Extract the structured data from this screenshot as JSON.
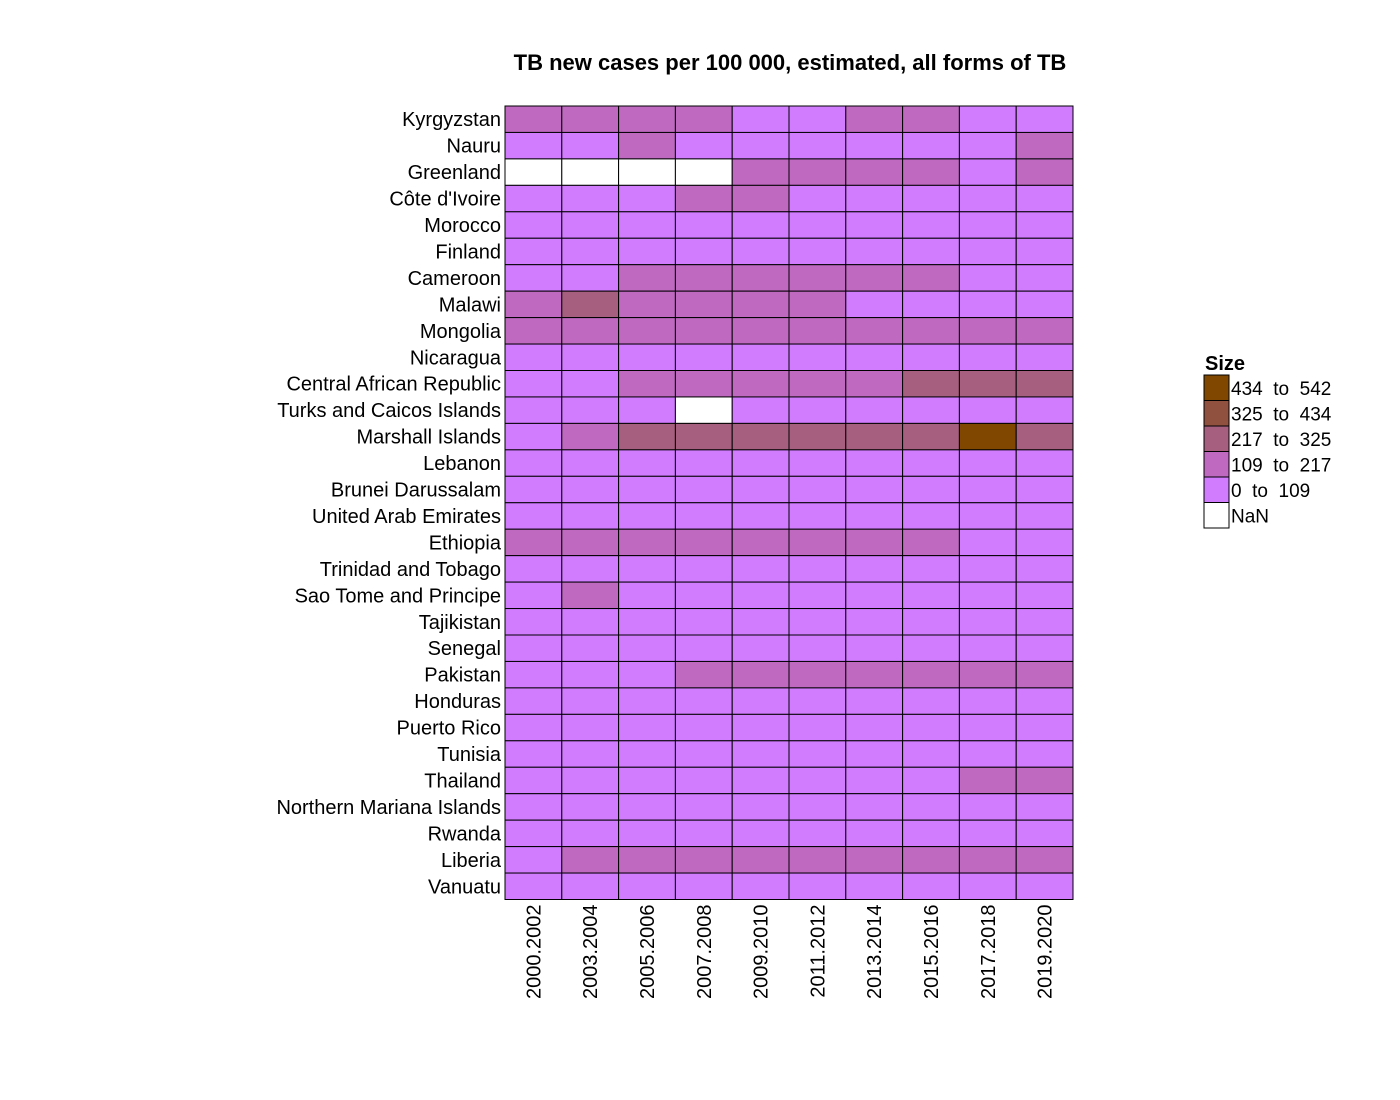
{
  "chart_data": {
    "type": "heatmap",
    "title": "TB new cases per 100 000, estimated, all forms of TB",
    "columns": [
      "2000.2002",
      "2003.2004",
      "2005.2006",
      "2007.2008",
      "2009.2010",
      "2011.2012",
      "2013.2014",
      "2015.2016",
      "2017.2018",
      "2019.2020"
    ],
    "rows": [
      "Kyrgyzstan",
      "Nauru",
      "Greenland",
      "Côte d'Ivoire",
      "Morocco",
      "Finland",
      "Cameroon",
      "Malawi",
      "Mongolia",
      "Nicaragua",
      "Central African Republic",
      "Turks and Caicos Islands",
      "Marshall Islands",
      "Lebanon",
      "Brunei Darussalam",
      "United Arab Emirates",
      "Ethiopia",
      "Trinidad and Tobago",
      "Sao Tome and Principe",
      "Tajikistan",
      "Senegal",
      "Pakistan",
      "Honduras",
      "Puerto Rico",
      "Tunisia",
      "Thailand",
      "Northern Mariana Islands",
      "Rwanda",
      "Liberia",
      "Vanuatu"
    ],
    "bin_index_matrix": [
      [
        1,
        1,
        1,
        1,
        0,
        0,
        1,
        1,
        0,
        0
      ],
      [
        0,
        0,
        1,
        0,
        0,
        0,
        0,
        0,
        0,
        1
      ],
      [
        -1,
        -1,
        -1,
        -1,
        1,
        1,
        1,
        1,
        0,
        1
      ],
      [
        0,
        0,
        0,
        1,
        1,
        0,
        0,
        0,
        0,
        0
      ],
      [
        0,
        0,
        0,
        0,
        0,
        0,
        0,
        0,
        0,
        0
      ],
      [
        0,
        0,
        0,
        0,
        0,
        0,
        0,
        0,
        0,
        0
      ],
      [
        0,
        0,
        1,
        1,
        1,
        1,
        1,
        1,
        0,
        0
      ],
      [
        1,
        2,
        1,
        1,
        1,
        1,
        0,
        0,
        0,
        0
      ],
      [
        1,
        1,
        1,
        1,
        1,
        1,
        1,
        1,
        1,
        1
      ],
      [
        0,
        0,
        0,
        0,
        0,
        0,
        0,
        0,
        0,
        0
      ],
      [
        0,
        0,
        1,
        1,
        1,
        1,
        1,
        2,
        2,
        2
      ],
      [
        0,
        0,
        0,
        -1,
        0,
        0,
        0,
        0,
        0,
        0
      ],
      [
        0,
        1,
        2,
        2,
        2,
        2,
        2,
        2,
        4,
        2
      ],
      [
        0,
        0,
        0,
        0,
        0,
        0,
        0,
        0,
        0,
        0
      ],
      [
        0,
        0,
        0,
        0,
        0,
        0,
        0,
        0,
        0,
        0
      ],
      [
        0,
        0,
        0,
        0,
        0,
        0,
        0,
        0,
        0,
        0
      ],
      [
        1,
        1,
        1,
        1,
        1,
        1,
        1,
        1,
        0,
        0
      ],
      [
        0,
        0,
        0,
        0,
        0,
        0,
        0,
        0,
        0,
        0
      ],
      [
        0,
        1,
        0,
        0,
        0,
        0,
        0,
        0,
        0,
        0
      ],
      [
        0,
        0,
        0,
        0,
        0,
        0,
        0,
        0,
        0,
        0
      ],
      [
        0,
        0,
        0,
        0,
        0,
        0,
        0,
        0,
        0,
        0
      ],
      [
        0,
        0,
        0,
        1,
        1,
        1,
        1,
        1,
        1,
        1
      ],
      [
        0,
        0,
        0,
        0,
        0,
        0,
        0,
        0,
        0,
        0
      ],
      [
        0,
        0,
        0,
        0,
        0,
        0,
        0,
        0,
        0,
        0
      ],
      [
        0,
        0,
        0,
        0,
        0,
        0,
        0,
        0,
        0,
        0
      ],
      [
        0,
        0,
        0,
        0,
        0,
        0,
        0,
        0,
        1,
        1
      ],
      [
        0,
        0,
        0,
        0,
        0,
        0,
        0,
        0,
        0,
        0
      ],
      [
        0,
        0,
        0,
        0,
        0,
        0,
        0,
        0,
        0,
        0
      ],
      [
        0,
        1,
        1,
        1,
        1,
        1,
        1,
        1,
        1,
        1
      ],
      [
        0,
        0,
        0,
        0,
        0,
        0,
        0,
        0,
        0,
        0
      ]
    ],
    "bins": [
      {
        "min": 0,
        "max": 109,
        "color": "#d17bff"
      },
      {
        "min": 109,
        "max": 217,
        "color": "#bf69c1"
      },
      {
        "min": 217,
        "max": 325,
        "color": "#a65f7f"
      },
      {
        "min": 325,
        "max": 434,
        "color": "#91513f"
      },
      {
        "min": 434,
        "max": 542,
        "color": "#7f4700"
      }
    ],
    "nan_color": "#ffffff",
    "legend": {
      "title": "Size",
      "position": "right",
      "entries": [
        "434  to  542",
        "325  to  434",
        "217  to  325",
        "109  to  217",
        "0  to  109",
        "NaN"
      ]
    }
  }
}
